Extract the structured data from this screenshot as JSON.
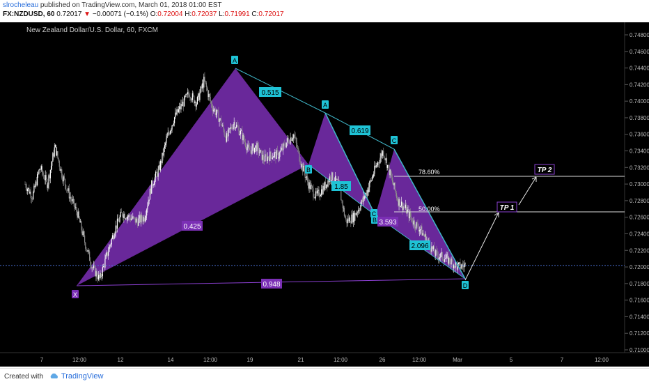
{
  "header": {
    "author": "slrocheleau",
    "published": " published on TradingView.com, March 01, 2018 01:00 EST",
    "symbol": "FX:NZDUSD, 60",
    "arrow": "▼",
    "change": "−0.00071 (−0.1%)",
    "o_label": "O:",
    "o_value": "0.72004",
    "h_label": "H:",
    "h_value": "0.72037",
    "l_label": "L:",
    "l_value": "0.71991",
    "c_label": "C:",
    "c_value": "0.72017",
    "last": "0.72017"
  },
  "footer": {
    "created": "Created with",
    "brand": "TradingView"
  },
  "chart_data": {
    "type": "candlestick",
    "title": "New Zealand Dollar/U.S. Dollar, 60, FXCM",
    "ylim": [
      0.7095,
      0.749
    ],
    "y_ticks": [
      "0.74800",
      "0.74600",
      "0.74400",
      "0.74200",
      "0.74000",
      "0.73800",
      "0.73600",
      "0.73400",
      "0.73200",
      "0.73000",
      "0.72800",
      "0.72600",
      "0.72400",
      "0.72200",
      "0.72000",
      "0.71800",
      "0.71600",
      "0.71400",
      "0.71200",
      "0.71000"
    ],
    "x_ticks": [
      "7",
      "12:00",
      "12",
      "14",
      "12:00",
      "19",
      "21",
      "12:00",
      "26",
      "12:00",
      "Mar",
      "5",
      "7",
      "12:00"
    ],
    "current_price": 0.72017,
    "price_path_close": [
      0.73,
      0.7285,
      0.732,
      0.73,
      0.7345,
      0.731,
      0.7285,
      0.7265,
      0.723,
      0.72,
      0.7185,
      0.7215,
      0.7245,
      0.7265,
      0.726,
      0.7255,
      0.726,
      0.73,
      0.7318,
      0.7355,
      0.738,
      0.7395,
      0.741,
      0.7398,
      0.7425,
      0.7395,
      0.738,
      0.7355,
      0.7375,
      0.736,
      0.734,
      0.7345,
      0.733,
      0.7335,
      0.7335,
      0.735,
      0.736,
      0.7325,
      0.73,
      0.7285,
      0.7295,
      0.731,
      0.73,
      0.7255,
      0.726,
      0.7275,
      0.7295,
      0.732,
      0.734,
      0.731,
      0.728,
      0.727,
      0.7255,
      0.7245,
      0.723,
      0.7215,
      0.7212,
      0.7207,
      0.72,
      0.7202
    ],
    "harmonic_points": [
      {
        "label": "X",
        "price": 0.7175
      },
      {
        "label": "A",
        "price": 0.744
      },
      {
        "label": "B",
        "price": 0.7327
      },
      {
        "label": "A",
        "price": 0.7387
      },
      {
        "label": "B",
        "price": 0.7275
      },
      {
        "label": "C",
        "price": 0.734
      },
      {
        "label": "C",
        "price": 0.7275
      },
      {
        "label": "D",
        "price": 0.7185
      }
    ],
    "ratios": [
      "0.515",
      "0.619",
      "1.85",
      "0.425",
      "3.593",
      "2.096",
      "0.948"
    ],
    "fib_levels": [
      {
        "label": "78.60%",
        "price": 0.731
      },
      {
        "label": "50.00%",
        "price": 0.7267
      }
    ],
    "targets": [
      {
        "label": "TP 1",
        "price": 0.7267
      },
      {
        "label": "TP 2",
        "price": 0.731
      }
    ]
  }
}
